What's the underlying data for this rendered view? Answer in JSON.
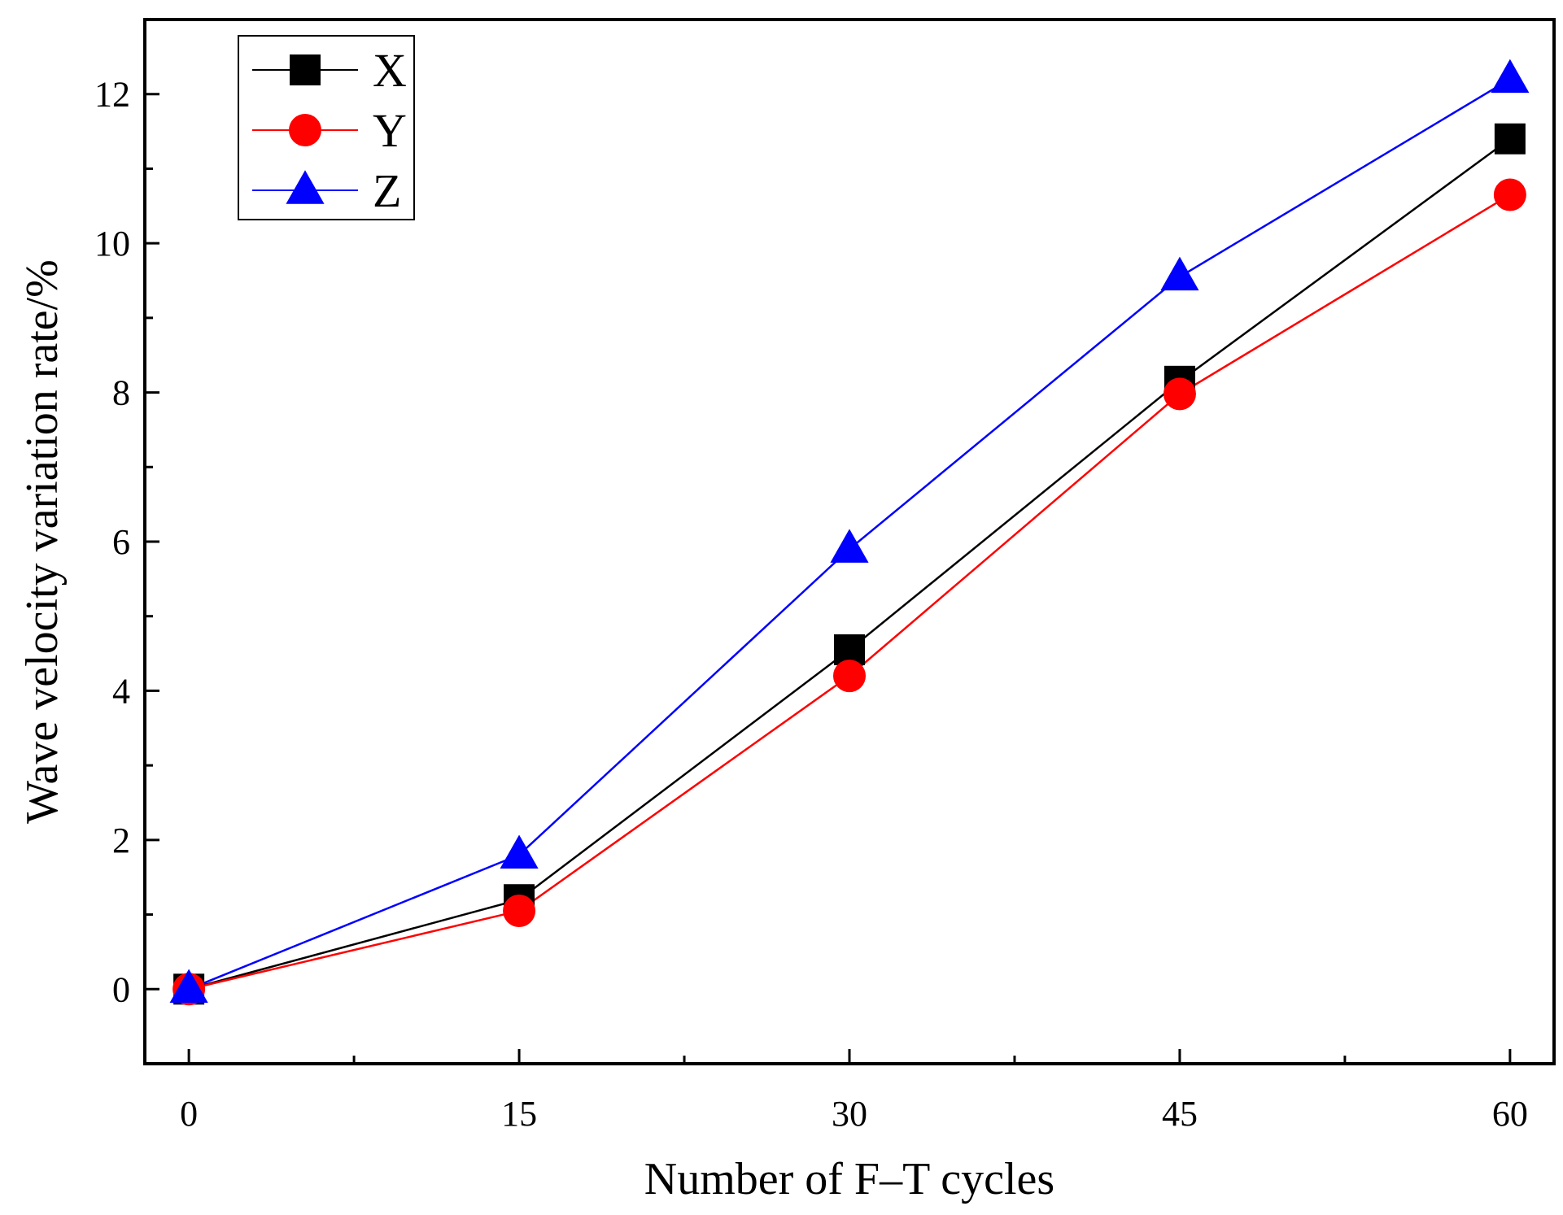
{
  "chart_data": {
    "type": "line",
    "title": "",
    "xlabel": "Number of F–T cycles",
    "ylabel": "Wave velocity variation rate/%",
    "x": [
      0,
      15,
      30,
      45,
      60
    ],
    "x_ticks": [
      "0",
      "15",
      "30",
      "45",
      "60"
    ],
    "y_ticks": [
      "0",
      "2",
      "4",
      "6",
      "8",
      "10",
      "12"
    ],
    "xlim": [
      -2,
      62
    ],
    "ylim": [
      -1,
      13
    ],
    "grid": false,
    "legend_position": "top-left",
    "series": [
      {
        "name": "X",
        "marker": "square",
        "color": "#000000",
        "values": [
          0,
          1.2,
          4.55,
          8.15,
          11.4
        ]
      },
      {
        "name": "Y",
        "marker": "circle",
        "color": "#ff0000",
        "values": [
          0,
          1.05,
          4.2,
          7.98,
          10.65
        ]
      },
      {
        "name": "Z",
        "marker": "triangle",
        "color": "#0000ff",
        "values": [
          0,
          1.8,
          5.9,
          9.55,
          12.2
        ]
      }
    ]
  }
}
